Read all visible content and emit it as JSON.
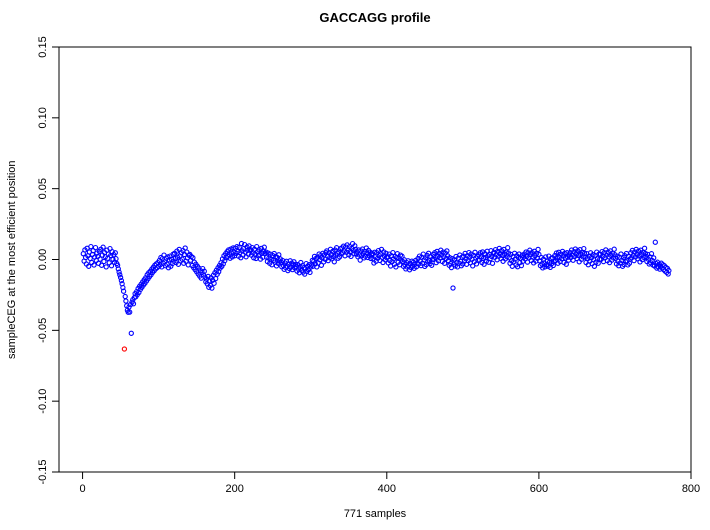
{
  "figure": {
    "title": "GACCAGG profile",
    "xlabel": "771 samples",
    "ylabel": "sampleCEG at the most efficient position"
  },
  "chart_data": {
    "type": "scatter",
    "title": "GACCAGG profile",
    "xlabel": "771 samples",
    "ylabel": "sampleCEG at the most efficient position",
    "n_samples": 771,
    "marker": "open-circle",
    "grid": false,
    "legend": "none",
    "point_color": "#0000FF",
    "highlight_color": "#FF0000",
    "highlight_x": 55,
    "axis_color": "#000000",
    "x_ticks": [
      0,
      200,
      400,
      600,
      800
    ],
    "y_ticks": [
      -0.15,
      -0.1,
      -0.05,
      0.0,
      0.05,
      0.1,
      0.15
    ],
    "xlim": [
      -31,
      800
    ],
    "ylim": [
      -0.15,
      0.15
    ],
    "x_start": 1,
    "y_values": [
      0.0041,
      -0.0011,
      0.0068,
      0.0014,
      -0.0032,
      0.0079,
      0.0026,
      -0.0048,
      0.0053,
      0.0008,
      0.0091,
      -0.0021,
      0.0036,
      0.0062,
      -0.0039,
      0.0017,
      0.0084,
      -0.0006,
      0.0045,
      0.0022,
      -0.0027,
      0.0058,
      0.0003,
      0.0072,
      -0.0041,
      0.0031,
      0.0087,
      -0.0014,
      0.0049,
      0.0019,
      -0.0052,
      0.0066,
      0.0009,
      0.0038,
      -0.0023,
      0.0077,
      0.0028,
      -0.0044,
      0.0055,
      0.0001,
      0.0034,
      -0.0019,
      0.0047,
      0.0006,
      -0.0028,
      -0.0041,
      -0.0066,
      -0.0089,
      -0.0108,
      -0.0127,
      -0.0149,
      -0.0171,
      -0.0198,
      -0.0224,
      -0.0632,
      -0.0261,
      -0.0293,
      -0.0327,
      -0.0358,
      -0.0372,
      -0.0336,
      -0.0371,
      -0.0318,
      -0.0521,
      -0.0302,
      -0.0284,
      -0.0312,
      -0.0269,
      -0.0241,
      -0.0263,
      -0.0227,
      -0.0248,
      -0.0205,
      -0.0233,
      -0.0189,
      -0.0211,
      -0.0174,
      -0.0196,
      -0.0158,
      -0.0181,
      -0.0143,
      -0.0167,
      -0.0129,
      -0.0152,
      -0.0108,
      -0.0136,
      -0.0094,
      -0.0121,
      -0.0083,
      -0.0107,
      -0.0068,
      -0.0092,
      -0.0055,
      -0.0079,
      -0.0041,
      -0.0066,
      -0.0031,
      -0.0057,
      -0.0022,
      -0.0048,
      -0.0007,
      -0.0038,
      0.0014,
      -0.0052,
      0.0006,
      -0.0027,
      0.0031,
      -0.0015,
      -0.0044,
      0.0009,
      -0.0033,
      0.0018,
      -0.0058,
      -0.0002,
      0.0024,
      -0.0047,
      0.0001,
      -0.0029,
      0.0037,
      -0.0012,
      0.0044,
      0.0007,
      -0.0021,
      0.0059,
      0.0016,
      -0.0034,
      0.0071,
      0.0025,
      -0.0009,
      0.0048,
      0.0002,
      0.0063,
      -0.0026,
      0.0035,
      0.0081,
      -0.0013,
      0.0052,
      0.0011,
      -0.0038,
      0.0029,
      0.0036,
      -0.0005,
      0.0021,
      -0.0042,
      0.0013,
      -0.0057,
      -0.0019,
      -0.0071,
      -0.0033,
      -0.0086,
      -0.0048,
      -0.0102,
      -0.0061,
      -0.0117,
      -0.0078,
      -0.0131,
      -0.0092,
      -0.0064,
      -0.0109,
      -0.0083,
      -0.0124,
      -0.0157,
      -0.0138,
      -0.0172,
      -0.0119,
      -0.0196,
      -0.0151,
      -0.0183,
      -0.0129,
      -0.0202,
      -0.0146,
      -0.0111,
      -0.0168,
      -0.0093,
      -0.0135,
      -0.0076,
      -0.0104,
      -0.0058,
      -0.0087,
      -0.0042,
      -0.0061,
      -0.0023,
      -0.0049,
      0.0004,
      -0.0031,
      0.0027,
      -0.0008,
      0.0041,
      0.0013,
      0.0056,
      0.0022,
      0.0068,
      0.0035,
      0.0009,
      0.0074,
      0.0046,
      0.0018,
      0.0082,
      0.0051,
      0.0027,
      0.0079,
      0.0043,
      0.0091,
      0.0057,
      0.0024,
      0.0086,
      0.0049,
      0.0013,
      0.0113,
      0.0061,
      0.0032,
      0.0077,
      0.0105,
      0.0052,
      0.0019,
      0.0088,
      0.0064,
      0.0038,
      0.0096,
      0.0071,
      0.0066,
      0.0031,
      0.0084,
      0.0048,
      0.0012,
      0.0073,
      0.0039,
      0.0007,
      0.0091,
      0.0055,
      0.0026,
      0.0069,
      0.0034,
      0.0003,
      0.0078,
      0.0044,
      0.0016,
      0.0059,
      0.0087,
      0.0041,
      0.0053,
      0.0017,
      -0.0014,
      0.0046,
      0.0009,
      -0.0026,
      0.0038,
      0.0002,
      -0.0037,
      0.0028,
      -0.0006,
      0.0042,
      -0.0018,
      0.0021,
      -0.0045,
      0.0014,
      -0.0027,
      0.0033,
      -0.0011,
      0.0004,
      -0.0018,
      -0.0051,
      -0.0007,
      -0.0042,
      -0.0069,
      -0.0024,
      -0.0056,
      -0.0013,
      -0.0047,
      -0.0078,
      -0.0031,
      -0.0064,
      -0.0009,
      -0.0053,
      -0.0026,
      -0.0071,
      -0.0038,
      -0.0016,
      -0.0059,
      -0.0034,
      -0.0049,
      -0.0082,
      -0.0037,
      -0.0068,
      -0.0094,
      -0.0052,
      -0.0021,
      -0.0076,
      -0.0043,
      -0.0089,
      -0.0058,
      -0.0103,
      -0.0066,
      -0.0029,
      -0.0084,
      -0.0047,
      -0.0072,
      -0.0036,
      -0.0091,
      -0.0054,
      -0.0039,
      -0.0006,
      -0.0047,
      -0.0013,
      0.0022,
      -0.0031,
      0.0008,
      -0.0052,
      0.0016,
      -0.0024,
      0.0039,
      -0.0002,
      0.0027,
      -0.0041,
      0.0011,
      0.0044,
      -0.0017,
      0.0033,
      0.0002,
      0.0048,
      0.0061,
      0.0024,
      -0.0008,
      0.0049,
      0.0013,
      0.0072,
      0.0036,
      0.0005,
      0.0058,
      0.0021,
      -0.0016,
      0.0067,
      0.0031,
      0.0083,
      0.0044,
      0.0009,
      0.0053,
      0.0018,
      0.0076,
      0.0041,
      0.0082,
      0.0047,
      0.0094,
      0.0059,
      0.0026,
      0.0088,
      0.0051,
      0.0103,
      0.0067,
      0.0034,
      0.0091,
      0.0056,
      0.0022,
      0.0078,
      0.0112,
      0.0063,
      0.0041,
      0.0097,
      0.0072,
      0.0038,
      0.0055,
      0.0019,
      0.0068,
      0.0032,
      -0.0004,
      0.0061,
      0.0027,
      0.0074,
      0.0043,
      0.0011,
      0.0057,
      0.0023,
      0.0081,
      0.0046,
      0.0014,
      0.0064,
      0.0029,
      0.0052,
      0.0007,
      0.0037,
      0.0042,
      0.0006,
      -0.0025,
      0.0051,
      0.0018,
      -0.0013,
      0.0047,
      0.0009,
      0.0063,
      0.0028,
      -0.0007,
      0.0039,
      0.0071,
      0.0016,
      -0.0021,
      0.0054,
      0.0024,
      -0.0002,
      0.0044,
      0.0013,
      0.0019,
      -0.0024,
      0.0038,
      -0.0007,
      -0.0046,
      0.0027,
      -0.0015,
      0.0049,
      0.0004,
      -0.0033,
      0.0021,
      -0.0052,
      0.0012,
      0.0041,
      -0.0019,
      0.0008,
      -0.0037,
      0.0031,
      -0.0004,
      0.0023,
      -0.0014,
      -0.0048,
      -0.0002,
      -0.0037,
      -0.0066,
      -0.0021,
      -0.0053,
      -0.0009,
      -0.0044,
      -0.0073,
      -0.0028,
      -0.0057,
      -0.0012,
      -0.0047,
      -0.0019,
      -0.0062,
      -0.0034,
      -0.0006,
      -0.0051,
      -0.0026,
      0.0007,
      -0.0032,
      0.0024,
      -0.0011,
      -0.0043,
      0.0016,
      -0.0026,
      0.0038,
      -0.0003,
      -0.0049,
      0.0012,
      -0.0036,
      0.0029,
      -0.0017,
      0.0044,
      -0.0008,
      -0.0029,
      0.0019,
      -0.0041,
      0.0002,
      0.0036,
      0.0001,
      0.0048,
      0.0014,
      -0.0022,
      0.0057,
      0.0023,
      -0.0009,
      0.0043,
      0.0011,
      0.0066,
      0.0031,
      -0.0014,
      0.0052,
      0.0019,
      -0.0027,
      0.0046,
      0.0008,
      0.0061,
      0.0026,
      -0.0008,
      -0.0041,
      0.0013,
      -0.0029,
      -0.0057,
      0.0006,
      -0.0201,
      -0.0034,
      -0.0002,
      -0.0046,
      0.0021,
      -0.0018,
      -0.0052,
      0.0009,
      -0.0027,
      0.0032,
      -0.0013,
      -0.0044,
      0.0017,
      -0.0031,
      0.0024,
      -0.0012,
      0.0043,
      0.0005,
      -0.0034,
      0.0027,
      -0.0008,
      0.0049,
      0.0016,
      -0.0023,
      0.0038,
      0.0002,
      -0.0045,
      0.0029,
      -0.0016,
      0.0051,
      0.0011,
      -0.0031,
      0.0022,
      -0.0005,
      0.0033,
      -0.0004,
      0.0047,
      0.0018,
      -0.0021,
      0.0054,
      0.0009,
      -0.0033,
      0.0041,
      0.0013,
      -0.0011,
      0.0058,
      0.0026,
      -0.0019,
      0.0037,
      0.0006,
      0.0062,
      0.0021,
      -0.0027,
      0.0044,
      0.0051,
      0.0016,
      0.0069,
      0.0034,
      -0.0002,
      0.0057,
      0.0023,
      0.0078,
      0.0042,
      0.0008,
      0.0063,
      0.0029,
      -0.0013,
      0.0071,
      0.0037,
      0.0004,
      0.0054,
      0.0019,
      0.0083,
      0.0046,
      0.0012,
      -0.0027,
      0.0036,
      -0.0009,
      -0.0048,
      0.0021,
      -0.0016,
      0.0044,
      0.0003,
      -0.0038,
      0.0026,
      -0.0051,
      0.0014,
      0.0039,
      -0.0022,
      0.0007,
      -0.0043,
      0.0031,
      -0.0012,
      0.0018,
      0.0039,
      0.0004,
      0.0053,
      0.0021,
      -0.0018,
      0.0047,
      0.0012,
      0.0066,
      0.0033,
      -0.0006,
      0.0049,
      0.0017,
      -0.0024,
      0.0058,
      0.0027,
      -0.0011,
      0.0043,
      0.0009,
      0.0071,
      0.0036,
      -0.0009,
      -0.0043,
      0.0014,
      -0.0031,
      -0.0059,
      0.0002,
      -0.0024,
      -0.0052,
      0.0018,
      -0.0037,
      -0.0013,
      -0.0047,
      0.0024,
      -0.0019,
      -0.0056,
      0.0007,
      -0.0028,
      0.0013,
      -0.0042,
      -0.0016,
      0.0028,
      -0.0007,
      0.0046,
      0.0013,
      -0.0026,
      0.0051,
      0.0017,
      -0.0014,
      0.0039,
      0.0005,
      0.0057,
      0.0024,
      -0.0021,
      0.0043,
      0.0011,
      -0.0033,
      0.0048,
      0.0016,
      -0.0004,
      0.0032,
      0.0049,
      0.0014,
      0.0067,
      0.0032,
      -0.0005,
      0.0055,
      0.0021,
      0.0074,
      0.0041,
      0.0007,
      0.0061,
      0.0028,
      -0.0016,
      0.0069,
      0.0035,
      0.0002,
      0.0052,
      0.0018,
      0.0077,
      0.0044,
      0.0016,
      -0.0021,
      0.0041,
      0.0006,
      -0.0037,
      0.0024,
      -0.0011,
      0.0047,
      0.0013,
      -0.0029,
      0.0034,
      -0.0002,
      -0.0048,
      0.0027,
      -0.0018,
      0.0052,
      0.0009,
      -0.0026,
      0.0038,
      0.0001,
      0.0037,
      0.0003,
      0.0056,
      0.0022,
      -0.0015,
      0.0049,
      0.0013,
      0.0068,
      0.0031,
      -0.0008,
      0.0052,
      0.0019,
      -0.0022,
      0.0061,
      0.0028,
      -0.0004,
      0.0045,
      0.0011,
      0.0073,
      0.0034,
      0.0008,
      -0.0031,
      0.0023,
      -0.0012,
      -0.0044,
      0.0017,
      -0.0025,
      0.0039,
      -0.0006,
      -0.0048,
      0.0013,
      -0.0035,
      0.0027,
      -0.0016,
      0.0042,
      -0.0009,
      -0.0038,
      0.0021,
      -0.0027,
      0.0004,
      0.0047,
      0.0012,
      0.0064,
      0.0029,
      -0.0008,
      0.0053,
      0.0018,
      0.0071,
      0.0038,
      0.0006,
      0.0059,
      0.0025,
      -0.0017,
      0.0066,
      0.0033,
      -0.0001,
      0.0051,
      0.0015,
      0.0079,
      0.0042,
      0.0021,
      -0.0014,
      0.0036,
      0.0002,
      -0.0032,
      0.0018,
      -0.0023,
      0.0041,
      -0.0007,
      -0.0039,
      0.0011,
      -0.0046,
      0.0122,
      -0.0028,
      -0.0061,
      -0.0019,
      -0.0053,
      -0.0034,
      -0.0068,
      -0.0047,
      -0.0026,
      -0.0059,
      -0.0037,
      -0.0071,
      -0.0044,
      -0.0082,
      -0.0056,
      -0.0091,
      -0.0063,
      -0.0102,
      -0.0078
    ]
  }
}
